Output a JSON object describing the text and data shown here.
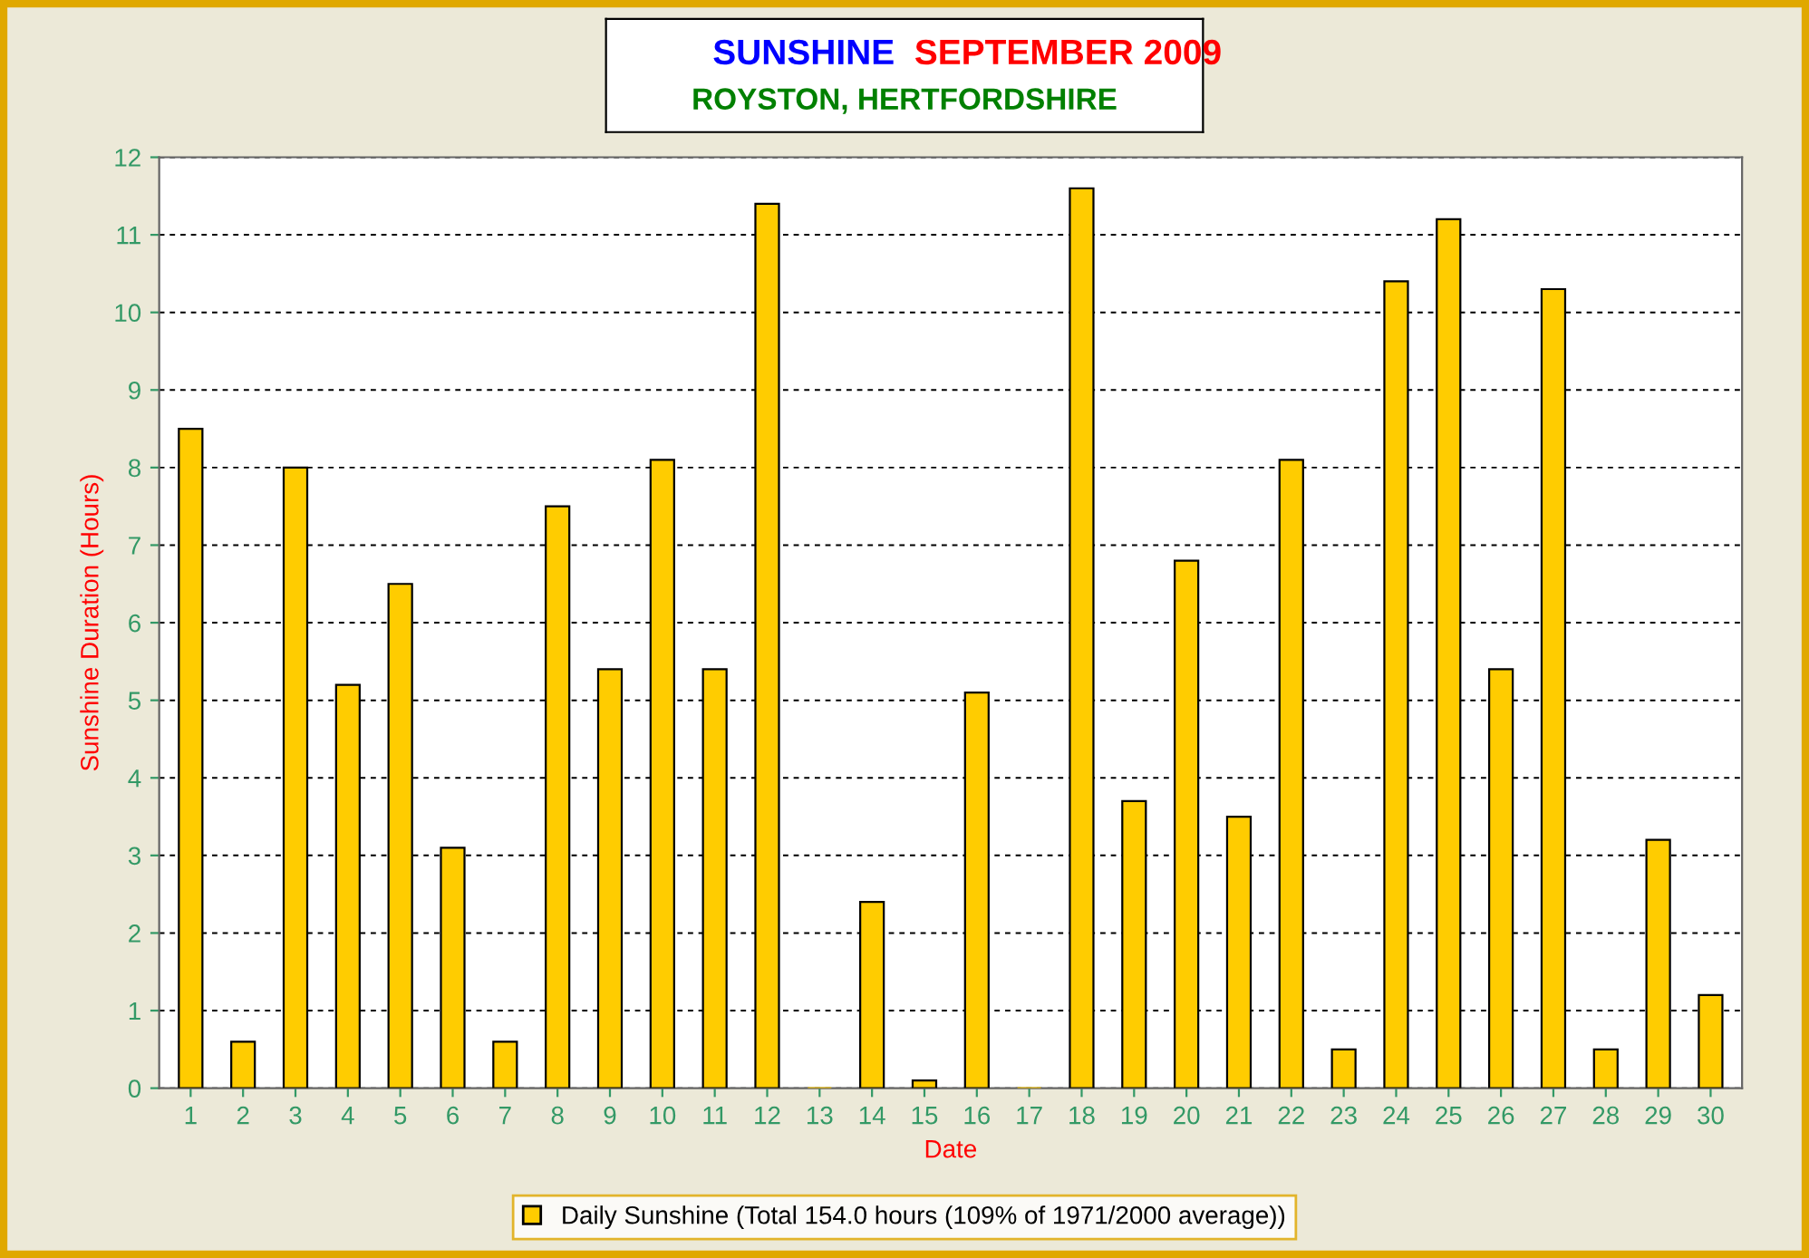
{
  "chart_data": {
    "type": "bar",
    "title": "SUNSHINE  SEPTEMBER 2009",
    "subtitle": "ROYSTON, HERTFORDSHIRE",
    "xlabel": "Date",
    "ylabel": "Sunshine Duration (Hours)",
    "categories": [
      "1",
      "2",
      "3",
      "4",
      "5",
      "6",
      "7",
      "8",
      "9",
      "10",
      "11",
      "12",
      "13",
      "14",
      "15",
      "16",
      "17",
      "18",
      "19",
      "20",
      "21",
      "22",
      "23",
      "24",
      "25",
      "26",
      "27",
      "28",
      "29",
      "30"
    ],
    "series": [
      {
        "name": "Daily Sunshine (Total 154.0 hours (109% of 1971/2000 average))",
        "color": "#ffcc00",
        "values": [
          8.5,
          0.6,
          8.0,
          5.2,
          6.5,
          3.1,
          0.6,
          7.5,
          5.4,
          8.1,
          5.4,
          11.4,
          0,
          2.4,
          0.1,
          5.1,
          0,
          11.6,
          3.7,
          6.8,
          3.5,
          8.1,
          0.5,
          10.4,
          11.2,
          5.4,
          10.3,
          0.5,
          3.2,
          1.2
        ]
      }
    ],
    "ylim": [
      0,
      12
    ],
    "yticks": [
      0,
      1,
      2,
      3,
      4,
      5,
      6,
      7,
      8,
      9,
      10,
      11,
      12
    ],
    "grid": "y",
    "legend": "bottom"
  }
}
